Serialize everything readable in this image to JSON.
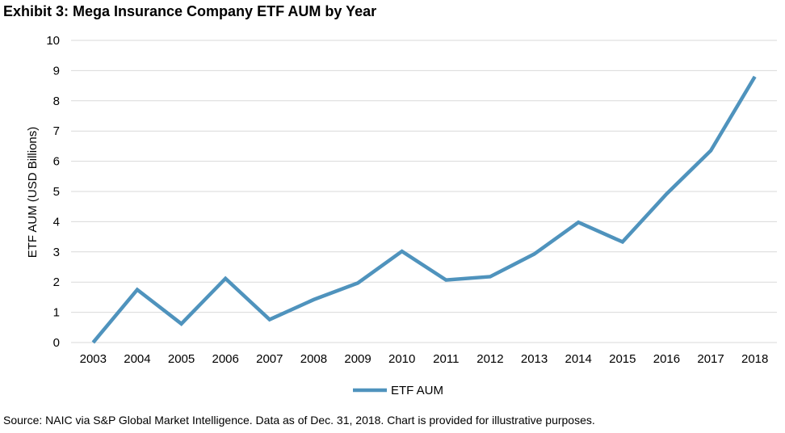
{
  "colors": {
    "line": "#4f93bd",
    "grid": "#d9d9d9",
    "text": "#000000"
  },
  "chart_data": {
    "type": "line",
    "title": "Exhibit 3: Mega Insurance Company ETF AUM by Year",
    "xlabel": "",
    "ylabel": "ETF AUM (USD Billions)",
    "ylim": [
      0,
      10
    ],
    "yticks": [
      "0",
      "1",
      "2",
      "3",
      "4",
      "5",
      "6",
      "7",
      "8",
      "9",
      "10"
    ],
    "categories": [
      "2003",
      "2004",
      "2005",
      "2006",
      "2007",
      "2008",
      "2009",
      "2010",
      "2011",
      "2012",
      "2013",
      "2014",
      "2015",
      "2016",
      "2017",
      "2018"
    ],
    "series": [
      {
        "name": "ETF AUM",
        "values": [
          0.0,
          1.75,
          0.62,
          2.12,
          0.76,
          1.42,
          1.97,
          3.02,
          2.07,
          2.18,
          2.93,
          3.98,
          3.33,
          4.92,
          6.35,
          8.8
        ]
      }
    ],
    "legend": "bottom-center",
    "grid": true,
    "source": "Source: NAIC via S&P Global Market Intelligence. Data as of Dec. 31, 2018. Chart is provided for illustrative purposes."
  }
}
